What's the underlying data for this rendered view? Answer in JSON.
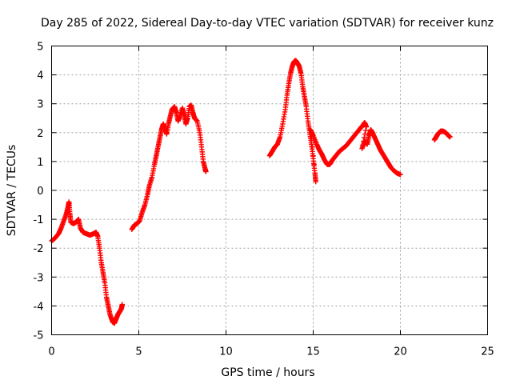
{
  "chart_data": {
    "type": "scatter",
    "title": "Day 285 of 2022, Sidereal Day-to-day VTEC variation (SDTVAR) for receiver kunz",
    "xlabel": "GPS time / hours",
    "ylabel": "SDTVAR / TECUs",
    "xlim": [
      0,
      25
    ],
    "ylim": [
      -5,
      5
    ],
    "xticks": [
      0,
      5,
      10,
      15,
      20,
      25
    ],
    "yticks": [
      -5,
      -4,
      -3,
      -2,
      -1,
      0,
      1,
      2,
      3,
      4,
      5
    ],
    "grid": true,
    "marker": "plus",
    "color": "#ff0000",
    "series": [
      {
        "segments": [
          [
            [
              0.0,
              -1.75
            ],
            [
              0.2,
              -1.65
            ],
            [
              0.4,
              -1.5
            ],
            [
              0.55,
              -1.3
            ],
            [
              0.7,
              -1.05
            ],
            [
              0.85,
              -0.8
            ],
            [
              0.95,
              -0.55
            ],
            [
              1.0,
              -0.4
            ],
            [
              1.05,
              -0.8
            ],
            [
              1.1,
              -1.1
            ],
            [
              1.25,
              -1.15
            ],
            [
              1.4,
              -1.1
            ],
            [
              1.55,
              -1.0
            ],
            [
              1.65,
              -1.3
            ],
            [
              1.8,
              -1.45
            ],
            [
              2.0,
              -1.5
            ],
            [
              2.2,
              -1.55
            ],
            [
              2.4,
              -1.5
            ],
            [
              2.55,
              -1.45
            ],
            [
              2.65,
              -1.6
            ],
            [
              2.75,
              -2.0
            ],
            [
              2.85,
              -2.5
            ],
            [
              2.95,
              -2.85
            ],
            [
              3.05,
              -3.2
            ],
            [
              3.15,
              -3.7
            ],
            [
              3.25,
              -4.0
            ],
            [
              3.35,
              -4.3
            ],
            [
              3.5,
              -4.55
            ],
            [
              3.6,
              -4.6
            ],
            [
              3.7,
              -4.45
            ],
            [
              3.8,
              -4.3
            ],
            [
              3.9,
              -4.2
            ],
            [
              4.0,
              -4.1
            ],
            [
              4.05,
              -3.95
            ]
          ],
          [
            [
              4.6,
              -1.35
            ],
            [
              4.75,
              -1.2
            ],
            [
              4.9,
              -1.15
            ],
            [
              5.05,
              -1.05
            ],
            [
              5.2,
              -0.75
            ],
            [
              5.35,
              -0.5
            ],
            [
              5.5,
              -0.15
            ],
            [
              5.6,
              0.15
            ],
            [
              5.75,
              0.45
            ],
            [
              5.9,
              0.9
            ],
            [
              6.0,
              1.2
            ],
            [
              6.1,
              1.5
            ],
            [
              6.2,
              1.8
            ],
            [
              6.3,
              2.1
            ],
            [
              6.4,
              2.3
            ],
            [
              6.5,
              2.15
            ],
            [
              6.6,
              1.95
            ],
            [
              6.7,
              2.3
            ],
            [
              6.8,
              2.55
            ],
            [
              6.9,
              2.8
            ],
            [
              7.05,
              2.9
            ],
            [
              7.15,
              2.7
            ],
            [
              7.25,
              2.4
            ],
            [
              7.35,
              2.55
            ],
            [
              7.5,
              2.85
            ],
            [
              7.6,
              2.6
            ],
            [
              7.7,
              2.3
            ],
            [
              7.8,
              2.5
            ],
            [
              7.9,
              2.9
            ],
            [
              8.0,
              2.95
            ],
            [
              8.1,
              2.7
            ],
            [
              8.2,
              2.5
            ],
            [
              8.35,
              2.4
            ],
            [
              8.5,
              2.0
            ],
            [
              8.6,
              1.5
            ],
            [
              8.7,
              1.0
            ],
            [
              8.8,
              0.75
            ],
            [
              8.85,
              0.65
            ]
          ],
          [
            [
              12.5,
              1.2
            ],
            [
              12.65,
              1.35
            ],
            [
              12.8,
              1.5
            ],
            [
              12.95,
              1.6
            ],
            [
              13.1,
              1.85
            ],
            [
              13.25,
              2.3
            ],
            [
              13.4,
              2.8
            ],
            [
              13.5,
              3.3
            ],
            [
              13.6,
              3.7
            ],
            [
              13.7,
              4.05
            ],
            [
              13.8,
              4.3
            ],
            [
              13.9,
              4.45
            ],
            [
              14.0,
              4.5
            ],
            [
              14.1,
              4.4
            ],
            [
              14.2,
              4.3
            ],
            [
              14.3,
              4.05
            ],
            [
              14.4,
              3.6
            ],
            [
              14.5,
              3.25
            ],
            [
              14.6,
              2.9
            ],
            [
              14.7,
              2.4
            ],
            [
              14.8,
              2.0
            ],
            [
              14.9,
              1.6
            ],
            [
              15.0,
              1.1
            ],
            [
              15.1,
              0.6
            ],
            [
              15.15,
              0.3
            ],
            [
              14.85,
              2.1
            ],
            [
              15.0,
              1.9
            ],
            [
              15.2,
              1.6
            ],
            [
              15.35,
              1.4
            ],
            [
              15.5,
              1.25
            ],
            [
              15.65,
              1.05
            ],
            [
              15.8,
              0.9
            ],
            [
              15.95,
              0.9
            ],
            [
              16.1,
              1.05
            ],
            [
              16.3,
              1.2
            ],
            [
              16.5,
              1.35
            ],
            [
              16.7,
              1.45
            ],
            [
              16.9,
              1.55
            ],
            [
              17.1,
              1.7
            ],
            [
              17.3,
              1.85
            ],
            [
              17.5,
              2.0
            ],
            [
              17.7,
              2.15
            ],
            [
              17.85,
              2.25
            ],
            [
              17.95,
              2.35
            ],
            [
              18.05,
              2.2
            ],
            [
              17.8,
              1.45
            ],
            [
              17.95,
              1.7
            ],
            [
              18.1,
              1.6
            ],
            [
              18.2,
              1.9
            ],
            [
              18.3,
              2.1
            ],
            [
              18.4,
              2.0
            ],
            [
              18.55,
              1.8
            ],
            [
              18.7,
              1.6
            ],
            [
              18.85,
              1.4
            ],
            [
              19.0,
              1.25
            ],
            [
              19.15,
              1.1
            ],
            [
              19.3,
              0.95
            ],
            [
              19.45,
              0.8
            ],
            [
              19.6,
              0.7
            ],
            [
              19.8,
              0.6
            ],
            [
              20.0,
              0.55
            ]
          ],
          [
            [
              21.95,
              1.75
            ],
            [
              22.05,
              1.85
            ],
            [
              22.15,
              1.95
            ],
            [
              22.3,
              2.05
            ],
            [
              22.45,
              2.05
            ],
            [
              22.6,
              2.0
            ],
            [
              22.75,
              1.9
            ],
            [
              22.85,
              1.85
            ]
          ]
        ]
      }
    ]
  }
}
